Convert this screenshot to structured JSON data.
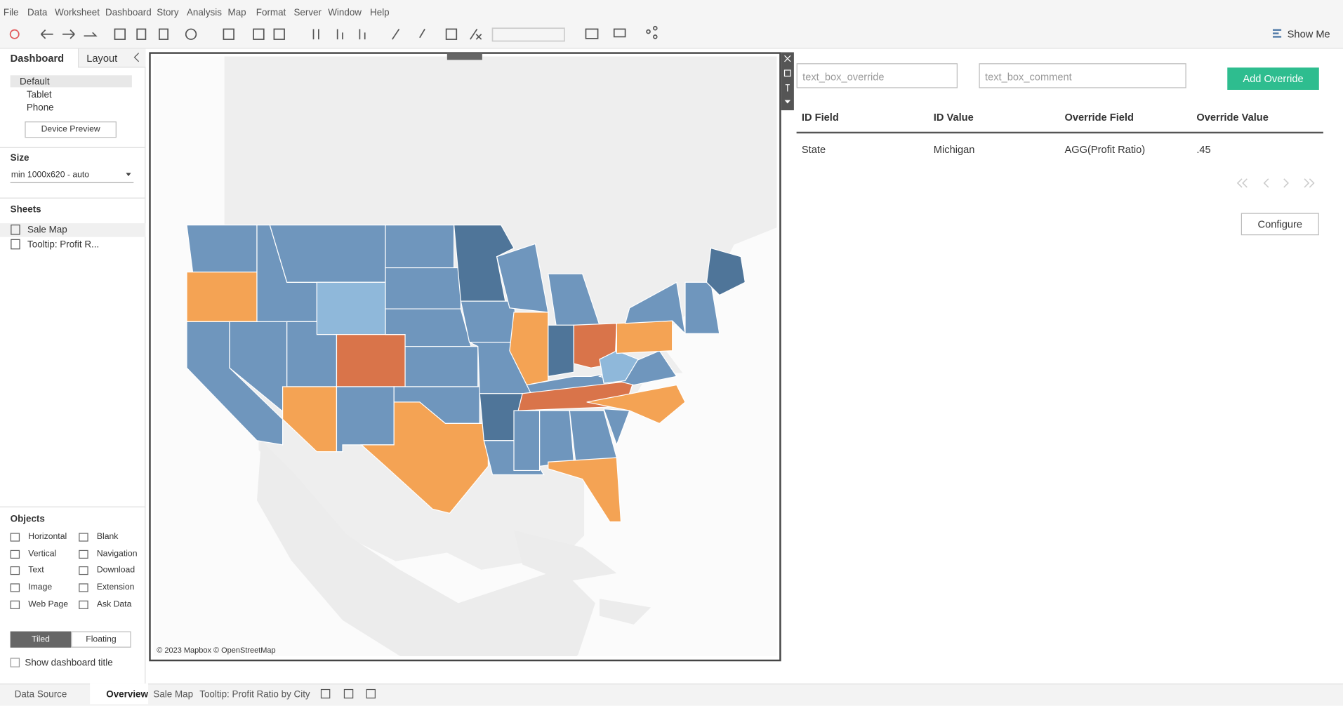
{
  "menu": [
    "File",
    "Data",
    "Worksheet",
    "Dashboard",
    "Story",
    "Analysis",
    "Map",
    "Format",
    "Server",
    "Window",
    "Help"
  ],
  "toolbar": {
    "show_me": "Show Me"
  },
  "left_panel": {
    "tabs": [
      "Dashboard",
      "Layout"
    ],
    "devices": [
      "Default",
      "Tablet",
      "Phone"
    ],
    "device_preview": "Device Preview",
    "size_title": "Size",
    "size_value": "min 1000x620 - auto",
    "sheets_title": "Sheets",
    "sheets": [
      "Sale Map",
      "Tooltip: Profit R..."
    ],
    "objects_title": "Objects",
    "objects": [
      "Horizontal",
      "Blank",
      "Vertical",
      "Navigation",
      "Text",
      "Download",
      "Image",
      "Extension",
      "Web Page",
      "Ask Data"
    ],
    "layout_modes": [
      "Tiled",
      "Floating"
    ],
    "show_title": "Show dashboard title"
  },
  "map": {
    "attribution": "© 2023 Mapbox © OpenStreetMap"
  },
  "extension": {
    "inputs": [
      "text_box_override",
      "text_box_comment"
    ],
    "button": "Add Override",
    "table": {
      "headers": [
        "ID Field",
        "ID Value",
        "Override Field",
        "Override Value"
      ],
      "rows": [
        [
          "State",
          "Michigan",
          "AGG(Profit Ratio)",
          ".45"
        ]
      ]
    },
    "configure": "Configure"
  },
  "bottom_tabs": [
    "Data Source",
    "Overview",
    "Sale Map",
    "Tooltip: Profit Ratio by City"
  ]
}
